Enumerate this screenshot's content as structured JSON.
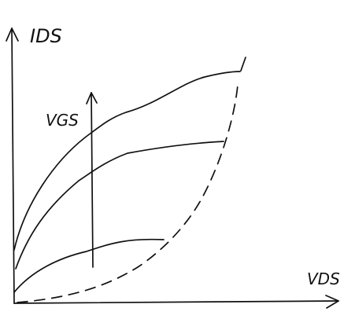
{
  "labels": {
    "y_axis": "IDS",
    "x_axis": "VDS",
    "arrow": "VGS"
  }
}
